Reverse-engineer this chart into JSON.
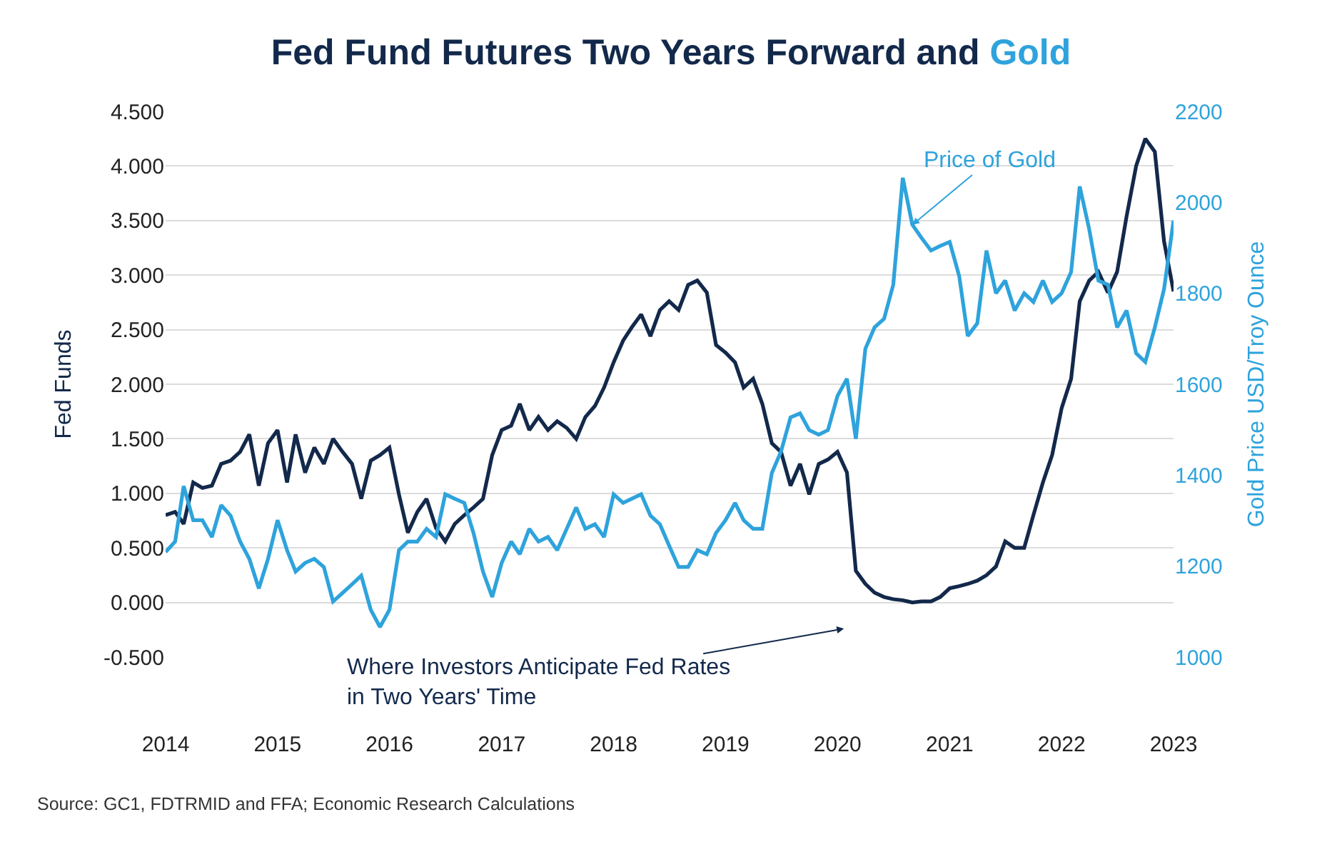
{
  "chart_data": {
    "type": "line",
    "title": "Fed Fund Futures Two Years Forward and Gold",
    "ylabel": "Fed Funds",
    "y2label": "Gold Price USD/Troy Ounce",
    "x": [
      "2014-01",
      "2014-02",
      "2014-03",
      "2014-04",
      "2014-05",
      "2014-06",
      "2014-07",
      "2014-08",
      "2014-09",
      "2014-10",
      "2014-11",
      "2014-12",
      "2015-01",
      "2015-02",
      "2015-03",
      "2015-04",
      "2015-05",
      "2015-06",
      "2015-07",
      "2015-08",
      "2015-09",
      "2015-10",
      "2015-11",
      "2015-12",
      "2016-01",
      "2016-02",
      "2016-03",
      "2016-04",
      "2016-05",
      "2016-06",
      "2016-07",
      "2016-08",
      "2016-09",
      "2016-10",
      "2016-11",
      "2016-12",
      "2017-01",
      "2017-02",
      "2017-03",
      "2017-04",
      "2017-05",
      "2017-06",
      "2017-07",
      "2017-08",
      "2017-09",
      "2017-10",
      "2017-11",
      "2017-12",
      "2018-01",
      "2018-02",
      "2018-03",
      "2018-04",
      "2018-05",
      "2018-06",
      "2018-07",
      "2018-08",
      "2018-09",
      "2018-10",
      "2018-11",
      "2018-12",
      "2019-01",
      "2019-02",
      "2019-03",
      "2019-04",
      "2019-05",
      "2019-06",
      "2019-07",
      "2019-08",
      "2019-09",
      "2019-10",
      "2019-11",
      "2019-12",
      "2020-01",
      "2020-02",
      "2020-03",
      "2020-04",
      "2020-05",
      "2020-06",
      "2020-07",
      "2020-08",
      "2020-09",
      "2020-10",
      "2020-11",
      "2020-12",
      "2021-01",
      "2021-02",
      "2021-03",
      "2021-04",
      "2021-05",
      "2021-06",
      "2021-07",
      "2021-08",
      "2021-09",
      "2021-10",
      "2021-11",
      "2021-12",
      "2022-01",
      "2022-02",
      "2022-03",
      "2022-04",
      "2022-05",
      "2022-06",
      "2022-07",
      "2022-08",
      "2022-09",
      "2022-10",
      "2022-11",
      "2022-12",
      "2023-01"
    ],
    "series": [
      {
        "color": "#13294b",
        "values": [
          0.8,
          0.83,
          0.72,
          1.1,
          1.05,
          1.07,
          1.27,
          1.3,
          1.38,
          1.54,
          1.07,
          1.46,
          1.58,
          1.1,
          1.54,
          1.19,
          1.42,
          1.27,
          1.5,
          1.38,
          1.27,
          0.95,
          1.3,
          1.35,
          1.42,
          0.99,
          0.64,
          0.83,
          0.95,
          0.68,
          0.56,
          0.72,
          0.8,
          0.87,
          0.95,
          1.35,
          1.58,
          1.62,
          1.82,
          1.58,
          1.7,
          1.58,
          1.66,
          1.6,
          1.5,
          1.7,
          1.8,
          1.97,
          2.2,
          2.4,
          2.52,
          2.64,
          2.44,
          2.68,
          2.76,
          2.68,
          2.91,
          2.95,
          2.84,
          2.36,
          2.29,
          2.2,
          1.97,
          2.05,
          1.82,
          1.46,
          1.38,
          1.07,
          1.27,
          0.99,
          1.27,
          1.31,
          1.38,
          1.19,
          0.29,
          0.17,
          0.09,
          0.05,
          0.03,
          0.02,
          0.0,
          0.01,
          0.01,
          0.05,
          0.13,
          0.15,
          0.17,
          0.2,
          0.25,
          0.33,
          0.56,
          0.5,
          0.5,
          0.8,
          1.1,
          1.35,
          1.78,
          2.05,
          2.76,
          2.95,
          3.03,
          2.84,
          3.03,
          3.54,
          4.0,
          4.25,
          4.13,
          3.31,
          2.85
        ]
      },
      {
        "color": "#2ea3dc",
        "axis": "y2",
        "values": [
          1231,
          1254,
          1376,
          1301,
          1301,
          1264,
          1334,
          1311,
          1254,
          1216,
          1151,
          1216,
          1301,
          1235,
          1188,
          1207,
          1216,
          1198,
          1122,
          1141,
          1160,
          1179,
          1104,
          1066,
          1104,
          1235,
          1254,
          1254,
          1282,
          1264,
          1358,
          1348,
          1339,
          1273,
          1188,
          1132,
          1207,
          1254,
          1226,
          1282,
          1254,
          1264,
          1235,
          1282,
          1329,
          1282,
          1292,
          1264,
          1358,
          1339,
          1348,
          1358,
          1311,
          1292,
          1245,
          1198,
          1198,
          1235,
          1226,
          1273,
          1301,
          1339,
          1301,
          1282,
          1282,
          1405,
          1452,
          1527,
          1536,
          1499,
          1489,
          1499,
          1574,
          1612,
          1480,
          1678,
          1725,
          1744,
          1819,
          2054,
          1951,
          1922,
          1894,
          1904,
          1913,
          1838,
          1706,
          1734,
          1894,
          1800,
          1828,
          1762,
          1800,
          1781,
          1828,
          1781,
          1800,
          1847,
          2035,
          1941,
          1828,
          1819,
          1725,
          1762,
          1668,
          1649,
          1725,
          1809,
          1960
        ]
      }
    ],
    "xlim": [
      "2014-01-01",
      "2023-01-01"
    ],
    "xticks": [
      "2014",
      "2015",
      "2016",
      "2017",
      "2018",
      "2019",
      "2020",
      "2021",
      "2022",
      "2023"
    ],
    "ylim": [
      -0.5,
      4.5
    ],
    "yticks": [
      {
        "value": -0.5,
        "label": "-0.500"
      },
      {
        "value": 0,
        "label": "0.000"
      },
      {
        "value": 0.5,
        "label": "0.500"
      },
      {
        "value": 1,
        "label": "1.000"
      },
      {
        "value": 1.5,
        "label": "1.500"
      },
      {
        "value": 2,
        "label": "2.000"
      },
      {
        "value": 2.5,
        "label": "2.500"
      },
      {
        "value": 3,
        "label": "3.000"
      },
      {
        "value": 3.5,
        "label": "3.500"
      },
      {
        "value": 4,
        "label": "4.000"
      },
      {
        "value": 4.5,
        "label": "4.500"
      }
    ],
    "y2lim": [
      1000,
      2200
    ],
    "y2ticks": [
      1000,
      1200,
      1400,
      1600,
      1800,
      2000,
      2200
    ],
    "grid": "y",
    "annotations": [
      {
        "text": "Price of Gold",
        "x": "2020-09",
        "y": 3.46
      },
      "Where Investors Anticipate Fed Rates\nin Two Years' Time",
      "Source: GC1, FDTRMID and FFA; Economic Research Calculations"
    ]
  }
}
